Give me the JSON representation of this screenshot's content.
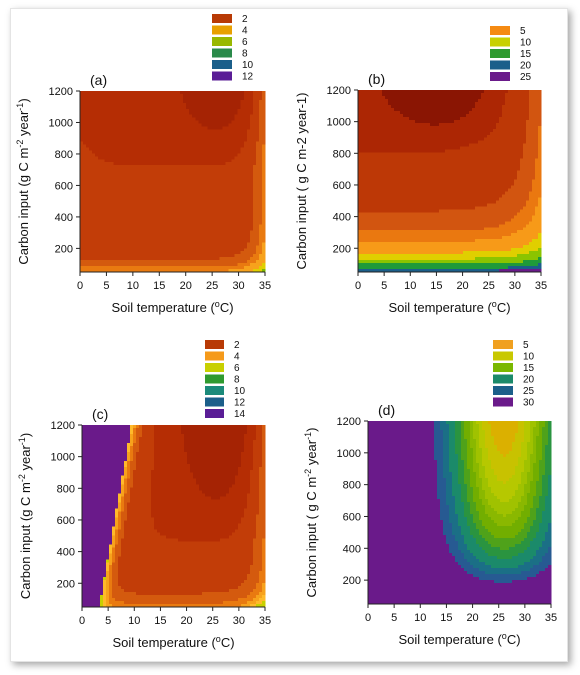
{
  "chart_data": [
    {
      "panel": "(a)",
      "type": "heatmap",
      "x": [
        0,
        5,
        10,
        15,
        20,
        25,
        30,
        35
      ],
      "y": [
        200,
        400,
        600,
        800,
        1000,
        1200
      ],
      "xlabel": "Soil temperature (°C)",
      "xlabel_parts": [
        "Soil temperature (",
        "o",
        "C)"
      ],
      "ylabel": "Carbon input (g C m-2 year-1)",
      "ylabel_parts": [
        "Carbon input (g C m",
        "-2",
        " year",
        "-1",
        ")"
      ],
      "xlim": [
        0,
        35
      ],
      "ylim": [
        50,
        1200
      ],
      "legend": {
        "labels": [
          "2",
          "4",
          "6",
          "8",
          "10",
          "12"
        ],
        "colors": [
          "#b83a05",
          "#e8a000",
          "#99b800",
          "#2a8a4a",
          "#1b5f8a",
          "#5a1d96"
        ]
      }
    },
    {
      "panel": "(b)",
      "type": "heatmap",
      "x": [
        0,
        5,
        10,
        15,
        20,
        25,
        30,
        35
      ],
      "y": [
        200,
        400,
        600,
        800,
        1000,
        1200
      ],
      "xlabel": "Soil temperature (°C)",
      "xlabel_parts": [
        "Soil temperature (",
        "o",
        "C)"
      ],
      "ylabel": "Carbon input ( g C m-2 year-1)",
      "ylabel_parts": [
        "Carbon input ( g C m-2 year-1)"
      ],
      "xlim": [
        0,
        35
      ],
      "ylim": [
        50,
        1200
      ],
      "legend": {
        "labels": [
          "5",
          "10",
          "15",
          "20",
          "25"
        ],
        "colors": [
          "#f58a12",
          "#c8d000",
          "#2f9a2f",
          "#1b5f8a",
          "#6a1a8a"
        ]
      }
    },
    {
      "panel": "(c)",
      "type": "heatmap",
      "x": [
        0,
        5,
        10,
        15,
        20,
        25,
        30,
        35
      ],
      "y": [
        200,
        400,
        600,
        800,
        1000,
        1200
      ],
      "xlabel": "Soil temperature (°C)",
      "xlabel_parts": [
        "Soil temperature (",
        "o",
        "C)"
      ],
      "ylabel": "Carbon input (g C m-2 year-1)",
      "ylabel_parts": [
        "Carbon input (g C m",
        "-2",
        " year",
        "-1",
        ")"
      ],
      "xlim": [
        0,
        35
      ],
      "ylim": [
        50,
        1200
      ],
      "legend": {
        "labels": [
          "2",
          "4",
          "6",
          "8",
          "10",
          "12",
          "14"
        ],
        "colors": [
          "#b83a05",
          "#f59a1a",
          "#c8d000",
          "#2f9a2f",
          "#1b8a7a",
          "#1b5f8a",
          "#5a1d96"
        ]
      }
    },
    {
      "panel": "(d)",
      "type": "heatmap",
      "x": [
        0,
        5,
        10,
        15,
        20,
        25,
        30,
        35
      ],
      "y": [
        200,
        400,
        600,
        800,
        1000,
        1200
      ],
      "xlabel": "Soil temperature (°C)",
      "xlabel_parts": [
        "Soil temperature (",
        "o",
        "C)"
      ],
      "ylabel": "Carbon input ( g C m-2 year-1)",
      "ylabel_parts": [
        "Carbon input ( g C m",
        "-2",
        " year",
        "-1",
        ")"
      ],
      "xlim": [
        0,
        35
      ],
      "ylim": [
        50,
        1200
      ],
      "legend": {
        "labels": [
          "5",
          "10",
          "15",
          "20",
          "25",
          "30"
        ],
        "colors": [
          "#f0a020",
          "#c8c800",
          "#7ab800",
          "#1b8a6a",
          "#1b5f8a",
          "#6a1a8a"
        ]
      }
    }
  ]
}
